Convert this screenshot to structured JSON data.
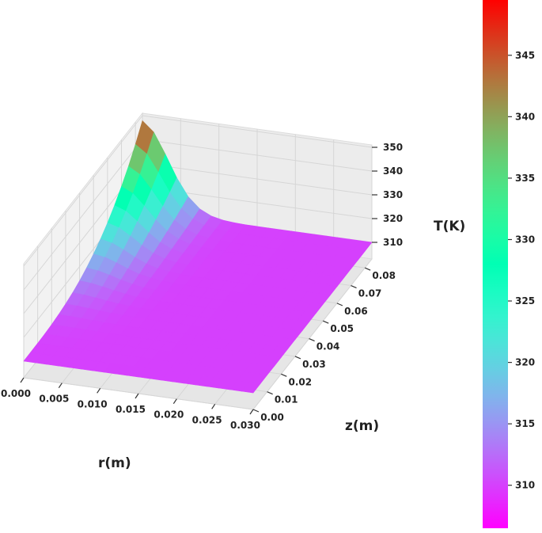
{
  "chart_data": {
    "type": "surface3d",
    "title": "",
    "xlabel": "r(m)",
    "ylabel": "z(m)",
    "zlabel": "T(K)",
    "x_ticks": [
      "0.000",
      "0.005",
      "0.010",
      "0.015",
      "0.020",
      "0.025",
      "0.030"
    ],
    "y_ticks": [
      "0.00",
      "0.01",
      "0.02",
      "0.03",
      "0.04",
      "0.05",
      "0.06",
      "0.07",
      "0.08"
    ],
    "z_ticks": [
      "310",
      "320",
      "330",
      "340",
      "350"
    ],
    "xlim": [
      0.0,
      0.03
    ],
    "ylim": [
      0.0,
      0.085
    ],
    "zlim": [
      303,
      351
    ],
    "colormap": "rainbow",
    "colorbar_ticks": [
      "345",
      "340",
      "335",
      "330",
      "325",
      "320",
      "315",
      "310"
    ],
    "colorbar_range": [
      306.5,
      349.5
    ],
    "surface": {
      "r": [
        0.0,
        0.0015,
        0.003,
        0.0045,
        0.006,
        0.0075,
        0.009,
        0.0105,
        0.012,
        0.0135,
        0.015,
        0.0165,
        0.018,
        0.0195,
        0.021,
        0.0225,
        0.024,
        0.0255,
        0.027,
        0.0285,
        0.03
      ],
      "z": [
        0.0,
        0.005,
        0.01,
        0.015,
        0.02,
        0.025,
        0.03,
        0.035,
        0.04,
        0.045,
        0.05,
        0.055,
        0.06,
        0.065,
        0.07,
        0.075,
        0.08,
        0.085
      ],
      "ambient_K": 310,
      "peak_K": 349.5,
      "peak_location": {
        "r": 0.0,
        "z": 0.085
      },
      "minimum_K": 306.5,
      "minimum_location": {
        "r": 0.004,
        "z": 0.085
      }
    }
  }
}
